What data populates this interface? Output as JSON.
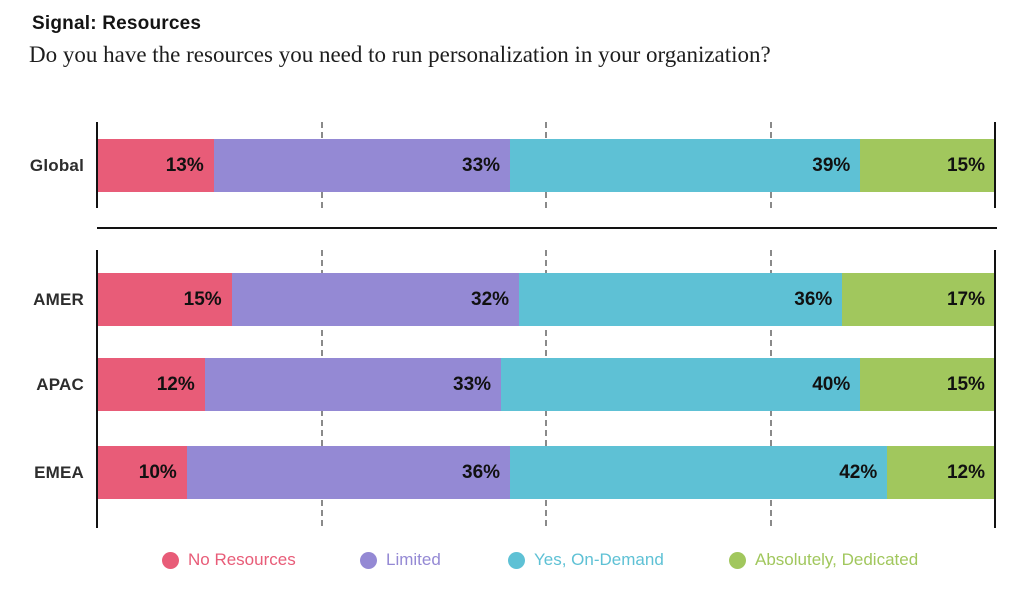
{
  "title": "Signal: Resources",
  "subtitle": "Do you have the resources you need to run personalization in your organization?",
  "chart_data": {
    "type": "bar",
    "variant": "horizontal-stacked",
    "unit": "%",
    "xlim": [
      0,
      100
    ],
    "gridlines_pct": [
      25,
      50,
      75
    ],
    "grid_style": "dashed",
    "legend_position": "bottom",
    "series": [
      {
        "name": "No Resources",
        "color": "#E85C78"
      },
      {
        "name": "Limited",
        "color": "#9489D4"
      },
      {
        "name": "Yes, On-Demand",
        "color": "#5EC1D5"
      },
      {
        "name": "Absolutely, Dedicated",
        "color": "#A1C75D"
      }
    ],
    "sections": [
      {
        "id": "global",
        "rows": [
          {
            "label": "Global",
            "values": [
              13,
              33,
              39,
              15
            ]
          }
        ]
      },
      {
        "id": "regions",
        "rows": [
          {
            "label": "AMER",
            "values": [
              15,
              32,
              36,
              17
            ]
          },
          {
            "label": "APAC",
            "values": [
              12,
              33,
              40,
              15
            ]
          },
          {
            "label": "EMEA",
            "values": [
              10,
              36,
              42,
              12
            ]
          }
        ]
      }
    ]
  }
}
